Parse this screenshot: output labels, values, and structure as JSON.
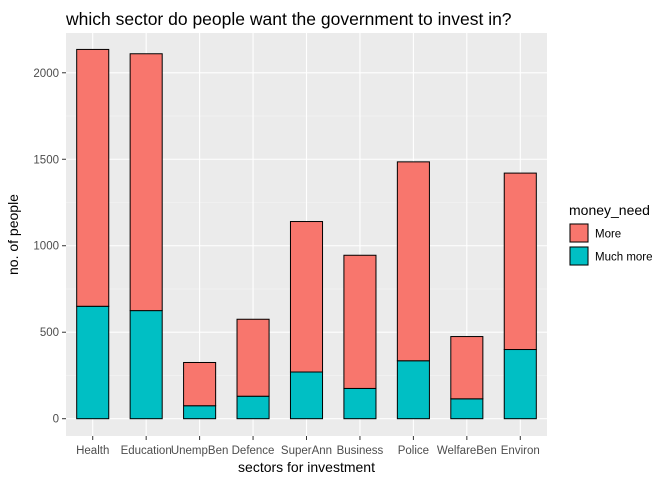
{
  "chart_data": {
    "type": "bar",
    "stacked": true,
    "title": "which sector do people want the government to invest in?",
    "xlabel": "sectors for investment",
    "ylabel": "no. of people",
    "ylim": [
      -100,
      2230
    ],
    "yticks": [
      0,
      500,
      1000,
      1500,
      2000
    ],
    "grid": true,
    "legend_position": "right",
    "legend_title": "money_need",
    "categories": [
      "Health",
      "Education",
      "UnempBen",
      "Defence",
      "SuperAnn",
      "Business",
      "Police",
      "WelfareBen",
      "Environ"
    ],
    "series": [
      {
        "name": "Much more",
        "color": "#00BFC4",
        "values": [
          650,
          625,
          75,
          130,
          270,
          175,
          335,
          115,
          400
        ]
      },
      {
        "name": "More",
        "color": "#F8766D",
        "values": [
          1485,
          1485,
          250,
          445,
          870,
          770,
          1150,
          360,
          1020
        ]
      }
    ],
    "legend_order": [
      "More",
      "Much more"
    ]
  }
}
